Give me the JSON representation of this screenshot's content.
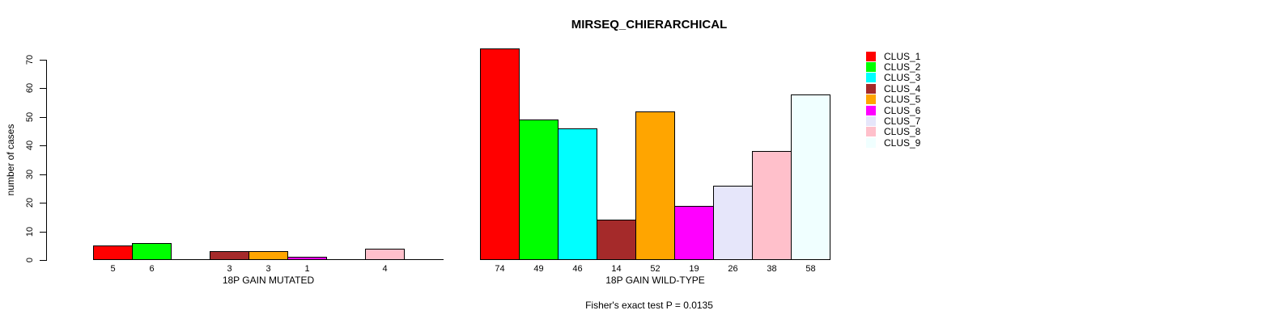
{
  "chart_data": {
    "type": "bar",
    "title": "MIRSEQ_CHIERARCHICAL",
    "ylabel": "number of cases",
    "xlabel": "",
    "ylim": [
      0,
      70
    ],
    "yticks": [
      0,
      10,
      20,
      30,
      40,
      50,
      60,
      70
    ],
    "grid": false,
    "legend_position": "right",
    "series": [
      {
        "name": "CLUS_1",
        "color": "#FF0000"
      },
      {
        "name": "CLUS_2",
        "color": "#00FF00"
      },
      {
        "name": "CLUS_3",
        "color": "#00FFFF"
      },
      {
        "name": "CLUS_4",
        "color": "#A52A2A"
      },
      {
        "name": "CLUS_5",
        "color": "#FFA500"
      },
      {
        "name": "CLUS_6",
        "color": "#FF00FF"
      },
      {
        "name": "CLUS_7",
        "color": "#E6E6FA"
      },
      {
        "name": "CLUS_8",
        "color": "#FFC0CB"
      },
      {
        "name": "CLUS_9",
        "color": "#F0FFFF"
      }
    ],
    "groups": [
      {
        "label": "18P GAIN MUTATED",
        "values": [
          5,
          6,
          0,
          3,
          3,
          1,
          0,
          4,
          0
        ]
      },
      {
        "label": "18P GAIN WILD-TYPE",
        "values": [
          74,
          49,
          46,
          14,
          52,
          19,
          26,
          38,
          58
        ]
      }
    ],
    "footnote": "Fisher's exact test P = 0.0135",
    "colors": {
      "bar_border": "#000000",
      "axis": "#000000",
      "text": "#000000",
      "background": "#FFFFFF"
    }
  }
}
